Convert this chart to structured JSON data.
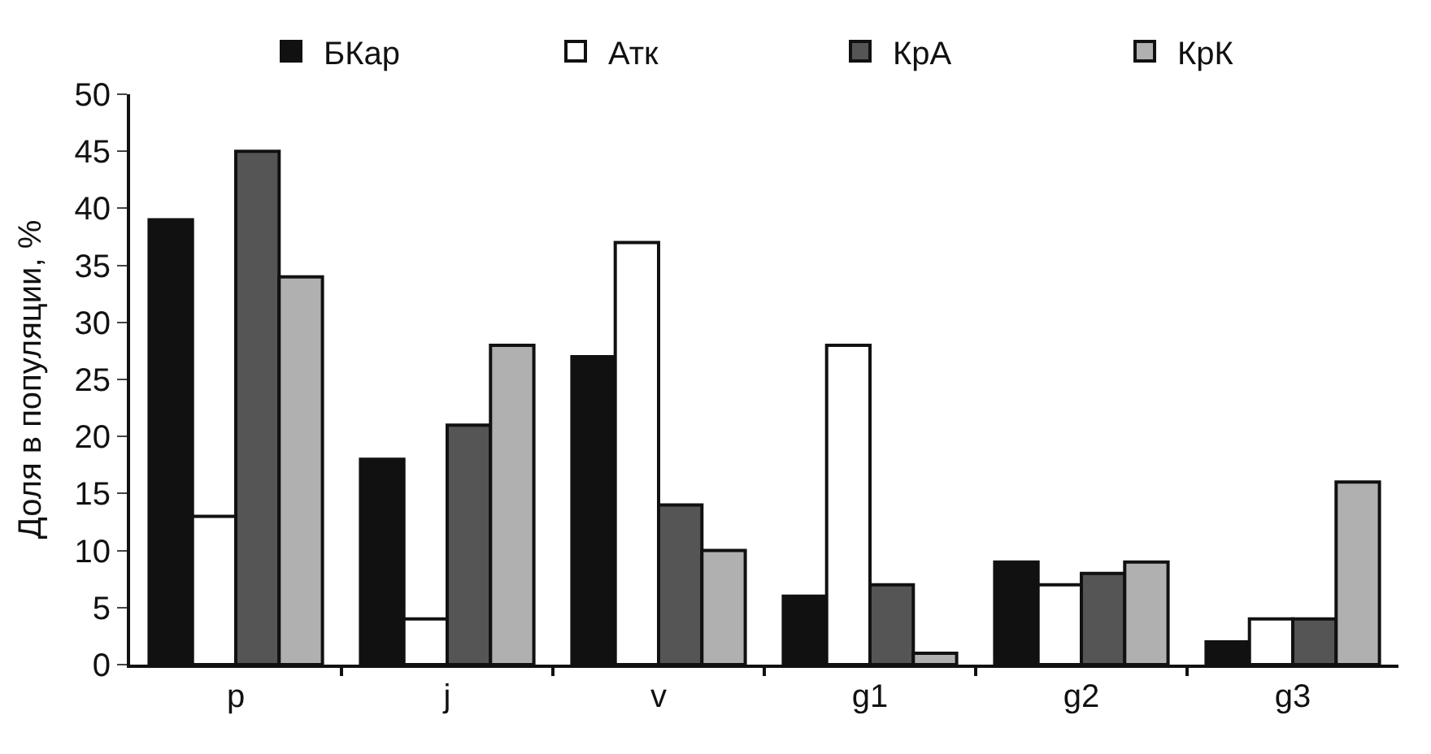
{
  "chart_data": {
    "type": "bar",
    "ylabel": "Доля в популяции, %",
    "categories": [
      "p",
      "j",
      "v",
      "g1",
      "g2",
      "g3"
    ],
    "series": [
      {
        "name": "БКар",
        "color": "#111111",
        "values": [
          39,
          18,
          27,
          6,
          9,
          2
        ]
      },
      {
        "name": "Атк",
        "color": "#ffffff",
        "values": [
          13,
          4,
          37,
          28,
          7,
          4
        ]
      },
      {
        "name": "КрА",
        "color": "#555555",
        "values": [
          45,
          21,
          14,
          7,
          8,
          4
        ]
      },
      {
        "name": "КрК",
        "color": "#b0b0b0",
        "values": [
          34,
          28,
          10,
          1,
          9,
          16
        ]
      }
    ],
    "ylim": [
      0,
      50
    ],
    "yticks": [
      0,
      5,
      10,
      15,
      20,
      25,
      30,
      35,
      40,
      45,
      50
    ],
    "legend": "top"
  }
}
